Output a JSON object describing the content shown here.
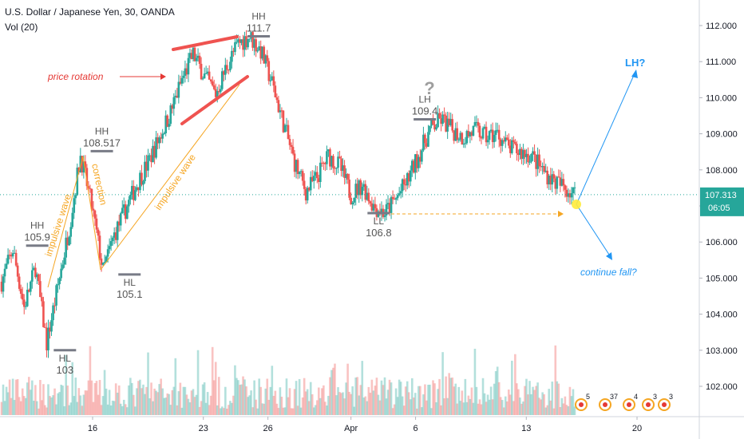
{
  "header": {
    "title": "U.S. Dollar / Japanese Yen, 30, OANDA",
    "volume_indicator": "Vol (20)"
  },
  "chart_data": {
    "type": "candlestick",
    "symbol": "U.S. Dollar / Japanese Yen",
    "interval": "30",
    "source": "OANDA",
    "y_ticks": [
      "112.000",
      "111.000",
      "110.000",
      "109.000",
      "108.000",
      "107.000",
      "106.000",
      "105.000",
      "104.000",
      "103.000",
      "102.000"
    ],
    "ylim": [
      101.2,
      112.5
    ],
    "x_ticks": [
      {
        "label": "16",
        "index": 8
      },
      {
        "label": "23",
        "index": 20
      },
      {
        "label": "26",
        "index": 27
      },
      {
        "label": "Apr",
        "index": 36
      },
      {
        "label": "6",
        "index": 43
      },
      {
        "label": "13",
        "index": 55
      },
      {
        "label": "20",
        "index": 67
      }
    ],
    "x_count": 73,
    "last_price": "107.313",
    "countdown": "06:05",
    "price_path": [
      104.9,
      105.8,
      104.2,
      105.3,
      103.2,
      104.8,
      106.4,
      108.4,
      107.0,
      105.2,
      106.2,
      106.9,
      107.6,
      108.2,
      108.9,
      109.6,
      110.5,
      111.2,
      110.6,
      110.1,
      110.9,
      111.5,
      111.7,
      111.3,
      110.4,
      109.3,
      108.2,
      107.4,
      107.8,
      108.4,
      108.1,
      107.3,
      107.6,
      107.0,
      106.8,
      107.2,
      107.7,
      108.4,
      109.1,
      109.4,
      109.1,
      108.9,
      109.1,
      108.9,
      109.0,
      108.6,
      108.5,
      108.4,
      108.0,
      107.7,
      107.5,
      107.3
    ],
    "annotations": [
      {
        "label": "HH",
        "value": "105.9",
        "price": 105.9,
        "index": 2
      },
      {
        "label": "HL",
        "value": "103",
        "price": 103.0,
        "index": 5
      },
      {
        "label": "HH",
        "value": "108.517",
        "price": 108.517,
        "index": 9
      },
      {
        "label": "HL",
        "value": "105.1",
        "price": 105.1,
        "index": 12
      },
      {
        "label": "HH",
        "value": "111.7",
        "price": 111.7,
        "index": 26
      },
      {
        "label": "LL",
        "value": "106.8",
        "price": 106.8,
        "index": 39
      },
      {
        "label": "LH",
        "value": "109.4",
        "price": 109.4,
        "index": 44
      }
    ],
    "texts": {
      "price_rotation": "price rotation",
      "impulsive_wave_1": "impulsive wave",
      "correction": "correction",
      "impulsive_wave_2": "impulsive wave",
      "lh_target": "LH?",
      "continue_fall": "continue fall?",
      "question": "?"
    },
    "event_badges": [
      "5",
      "37",
      "4",
      "3",
      "3"
    ]
  },
  "colors": {
    "up": "#26a69a",
    "down": "#ef5350",
    "annotation": "#787b86",
    "orange": "#f5a623",
    "red_text": "#e53935",
    "blue": "#2196f3",
    "price_tag": "#26a69a"
  }
}
